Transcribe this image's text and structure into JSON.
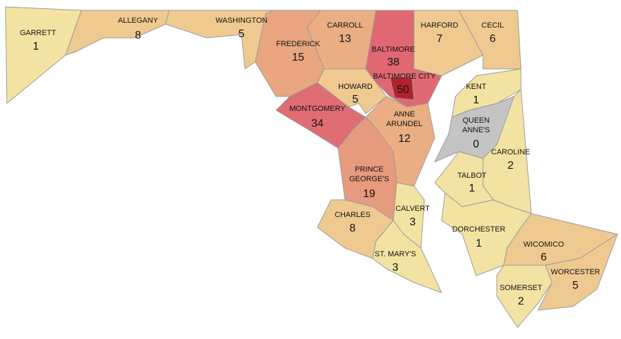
{
  "counties": [
    {
      "label": [
        "GARRETT"
      ],
      "value": 1,
      "color": "#f3e3a2"
    },
    {
      "label": [
        "ALLEGANY"
      ],
      "value": 8,
      "color": "#efca90"
    },
    {
      "label": [
        "WASHINGTON"
      ],
      "value": 5,
      "color": "#efca90"
    },
    {
      "label": [
        "FREDERICK"
      ],
      "value": 15,
      "color": "#e9a680"
    },
    {
      "label": [
        "CARROLL"
      ],
      "value": 13,
      "color": "#eaae82"
    },
    {
      "label": [
        "HARFORD"
      ],
      "value": 7,
      "color": "#efca90"
    },
    {
      "label": [
        "CECIL"
      ],
      "value": 6,
      "color": "#efca90"
    },
    {
      "label": [
        "BALTIMORE"
      ],
      "value": 38,
      "color": "#e06872"
    },
    {
      "label": [
        "BALTIMORE CITY"
      ],
      "value": 50,
      "color": "#b3222c"
    },
    {
      "label": [
        "HOWARD"
      ],
      "value": 5,
      "color": "#efca90"
    },
    {
      "label": [
        "MONTGOMERY"
      ],
      "value": 34,
      "color": "#e06c74"
    },
    {
      "label": [
        "ANNE",
        "ARUNDEL"
      ],
      "value": 12,
      "color": "#eaae82"
    },
    {
      "label": [
        "KENT"
      ],
      "value": 1,
      "color": "#f3e3a2"
    },
    {
      "label": [
        "QUEEN",
        "ANNE'S"
      ],
      "value": 0,
      "color": "#c4c4c4"
    },
    {
      "label": [
        "CAROLINE"
      ],
      "value": 2,
      "color": "#f3e3a2"
    },
    {
      "label": [
        "TALBOT"
      ],
      "value": 1,
      "color": "#f3e3a2"
    },
    {
      "label": [
        "PRINCE",
        "GEORGE'S"
      ],
      "value": 19,
      "color": "#e69a7e"
    },
    {
      "label": [
        "CALVERT"
      ],
      "value": 3,
      "color": "#f3e3a2"
    },
    {
      "label": [
        "CHARLES"
      ],
      "value": 8,
      "color": "#efca90"
    },
    {
      "label": [
        "DORCHESTER"
      ],
      "value": 1,
      "color": "#f3e3a2"
    },
    {
      "label": [
        "ST. MARY'S"
      ],
      "value": 3,
      "color": "#f3e3a2"
    },
    {
      "label": [
        "WICOMICO"
      ],
      "value": 6,
      "color": "#efca90"
    },
    {
      "label": [
        "WORCESTER"
      ],
      "value": 5,
      "color": "#efca90"
    },
    {
      "label": [
        "SOMERSET"
      ],
      "value": 2,
      "color": "#f3e3a2"
    }
  ]
}
